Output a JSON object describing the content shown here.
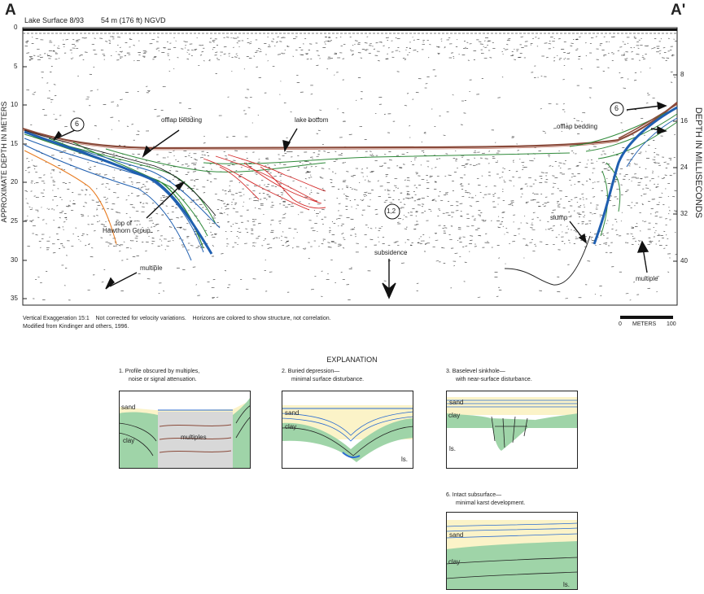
{
  "header": {
    "label_a": "A",
    "label_a_prime": "A'",
    "lake_surface": "Lake Surface 8/93",
    "elevation": "54 m (176 ft) NGVD"
  },
  "axes": {
    "left_title": "APPROXIMATE DEPTH IN METERS",
    "right_title": "DEPTH IN MILLISECONDS",
    "left_ticks": [
      "0",
      "5",
      "10",
      "15",
      "20",
      "25",
      "30",
      "35"
    ],
    "right_ticks": [
      "8",
      "16",
      "24",
      "32",
      "40"
    ]
  },
  "annotations": {
    "offlap_left": "offlap bedding",
    "offlap_right": "offlap bedding",
    "lake_bottom": "lake bottom",
    "slump": "slump",
    "top_hawthorn_1": "top of",
    "top_hawthorn_2": "Hawthorn Group",
    "multiple_left": "multiple",
    "multiple_right": "multiple",
    "subsidence": "subsidence",
    "circle_6_left": "6",
    "circle_6_right": "6",
    "circle_12": "1,2"
  },
  "notes": {
    "line1": "Vertical Exaggeration 15:1    Not corrected for velocity variations.    Horizons are colored to show structure, not correlation.",
    "line2": "Modified from Kindinger and others, 1996."
  },
  "scale": {
    "start": "0",
    "unit": "METERS",
    "end": "100"
  },
  "explanation": {
    "title": "EXPLANATION",
    "panel1": {
      "line1": "1. Profile obscured by multiples,",
      "line2": "noise or signal attenuation.",
      "sand": "sand",
      "clay": "clay",
      "multiples": "multiples"
    },
    "panel2": {
      "line1": "2. Buried depression—",
      "line2": "minimal surface disturbance.",
      "sand": "sand",
      "clay": "clay",
      "ls": "ls."
    },
    "panel3": {
      "line1": "3. Baselevel sinkhole—",
      "line2": "with near-surface disturbance.",
      "sand": "sand",
      "clay": "clay",
      "ls": "ls."
    },
    "panel6": {
      "line1": "6. Intact subsurface—",
      "line2": "minimal karst development.",
      "sand": "sand",
      "clay": "clay",
      "ls": "ls."
    }
  },
  "colors": {
    "sand": "#fbf3c8",
    "clay": "#9fd4a8",
    "multiples_fill": "#d8d8d8",
    "lake_bottom": "#8a4a3a",
    "blue_horizon": "#1f5fb0",
    "green_horizon": "#2f8a3a",
    "red_horizon": "#d42a2a",
    "orange_horizon": "#e87a1e"
  }
}
